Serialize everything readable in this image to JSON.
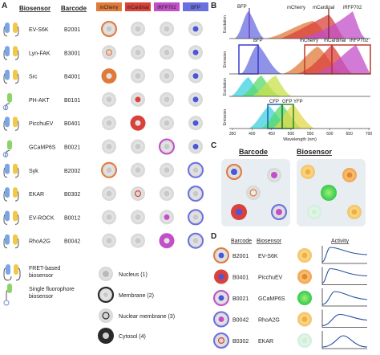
{
  "panels": {
    "a": "A",
    "b": "B",
    "c": "C",
    "d": "D"
  },
  "panel_a": {
    "headers": {
      "biosensor": "Biosensor",
      "barcode": "Barcode"
    },
    "channels": [
      {
        "label": "mCherry",
        "color": "#e07a3a"
      },
      {
        "label": "mCardinal",
        "color": "#d9423b"
      },
      {
        "label": "iRFP702",
        "color": "#c24fc9"
      },
      {
        "label": "BFP",
        "color": "#6a6fe0"
      }
    ],
    "rows": [
      {
        "biosensor": "EV-S6K",
        "barcode": "B2001"
      },
      {
        "biosensor": "Lyn-FAK",
        "barcode": "B3001"
      },
      {
        "biosensor": "Src",
        "barcode": "B4001"
      },
      {
        "biosensor": "PH-AKT",
        "barcode": "B0101"
      },
      {
        "biosensor": "PicchuEV",
        "barcode": "B0401"
      },
      {
        "biosensor": "GCaMP6S",
        "barcode": "B0021"
      },
      {
        "biosensor": "Syk",
        "barcode": "B2002"
      },
      {
        "biosensor": "EKAR",
        "barcode": "B0302"
      },
      {
        "biosensor": "EV-ROCK",
        "barcode": "B0012"
      },
      {
        "biosensor": "RhoA2G",
        "barcode": "B0042"
      }
    ],
    "legend_sensors": [
      {
        "line1": "FRET-based",
        "line2": "biosensor"
      },
      {
        "line1": "Single fluorophore",
        "line2": "biosensor"
      }
    ],
    "legend_locations": [
      "Nucleus (1)",
      "Membrane (2)",
      "Nuclear membrane (3)",
      "Cytosol (4)"
    ]
  },
  "panel_b": {
    "ylabel_excitation": "Excitation",
    "ylabel_emission": "Emission",
    "xlabel": "Wavelength (nm)",
    "ticks": [
      "350",
      "400",
      "450",
      "500",
      "550",
      "600",
      "650",
      "700"
    ],
    "labels_top": [
      "BFP",
      "mCherry",
      "mCardinal",
      "iRFP702"
    ],
    "labels_bottom": [
      "CFP",
      "GFP",
      "YFP"
    ]
  },
  "panel_c": {
    "title_left": "Barcode",
    "title_right": "Biosensor"
  },
  "panel_d": {
    "headers": {
      "barcode": "Barcode",
      "biosensor": "Biosensor",
      "activity": "Activity"
    },
    "rows": [
      {
        "barcode": "B2001",
        "biosensor": "EV-S6K"
      },
      {
        "barcode": "B0401",
        "biosensor": "PicchuEV"
      },
      {
        "barcode": "B0021",
        "biosensor": "GCaMP6S"
      },
      {
        "barcode": "B0042",
        "biosensor": "RhoA2G"
      },
      {
        "barcode": "B0302",
        "biosensor": "EKAR"
      }
    ]
  }
}
